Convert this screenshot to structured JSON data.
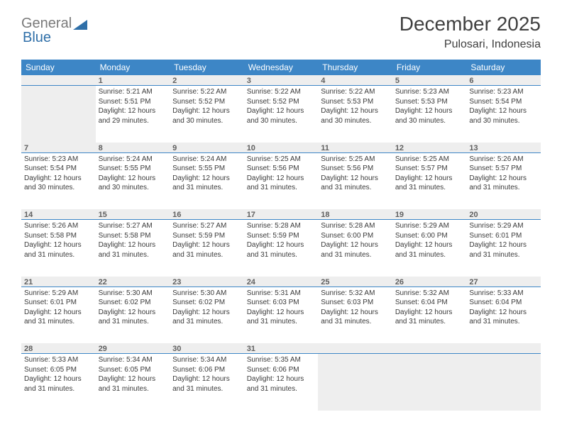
{
  "brand": {
    "gray": "General",
    "blue": "Blue"
  },
  "title": "December 2025",
  "location": "Pulosari, Indonesia",
  "colors": {
    "header_bg": "#3d86c6",
    "header_fg": "#ffffff",
    "cell_stripe": "#eeeeee",
    "border": "#3d86c6",
    "text": "#404040"
  },
  "day_headers": [
    "Sunday",
    "Monday",
    "Tuesday",
    "Wednesday",
    "Thursday",
    "Friday",
    "Saturday"
  ],
  "weeks": [
    [
      null,
      {
        "n": "1",
        "sr": "Sunrise: 5:21 AM",
        "ss": "Sunset: 5:51 PM",
        "dl": "Daylight: 12 hours and 29 minutes."
      },
      {
        "n": "2",
        "sr": "Sunrise: 5:22 AM",
        "ss": "Sunset: 5:52 PM",
        "dl": "Daylight: 12 hours and 30 minutes."
      },
      {
        "n": "3",
        "sr": "Sunrise: 5:22 AM",
        "ss": "Sunset: 5:52 PM",
        "dl": "Daylight: 12 hours and 30 minutes."
      },
      {
        "n": "4",
        "sr": "Sunrise: 5:22 AM",
        "ss": "Sunset: 5:53 PM",
        "dl": "Daylight: 12 hours and 30 minutes."
      },
      {
        "n": "5",
        "sr": "Sunrise: 5:23 AM",
        "ss": "Sunset: 5:53 PM",
        "dl": "Daylight: 12 hours and 30 minutes."
      },
      {
        "n": "6",
        "sr": "Sunrise: 5:23 AM",
        "ss": "Sunset: 5:54 PM",
        "dl": "Daylight: 12 hours and 30 minutes."
      }
    ],
    [
      {
        "n": "7",
        "sr": "Sunrise: 5:23 AM",
        "ss": "Sunset: 5:54 PM",
        "dl": "Daylight: 12 hours and 30 minutes."
      },
      {
        "n": "8",
        "sr": "Sunrise: 5:24 AM",
        "ss": "Sunset: 5:55 PM",
        "dl": "Daylight: 12 hours and 30 minutes."
      },
      {
        "n": "9",
        "sr": "Sunrise: 5:24 AM",
        "ss": "Sunset: 5:55 PM",
        "dl": "Daylight: 12 hours and 31 minutes."
      },
      {
        "n": "10",
        "sr": "Sunrise: 5:25 AM",
        "ss": "Sunset: 5:56 PM",
        "dl": "Daylight: 12 hours and 31 minutes."
      },
      {
        "n": "11",
        "sr": "Sunrise: 5:25 AM",
        "ss": "Sunset: 5:56 PM",
        "dl": "Daylight: 12 hours and 31 minutes."
      },
      {
        "n": "12",
        "sr": "Sunrise: 5:25 AM",
        "ss": "Sunset: 5:57 PM",
        "dl": "Daylight: 12 hours and 31 minutes."
      },
      {
        "n": "13",
        "sr": "Sunrise: 5:26 AM",
        "ss": "Sunset: 5:57 PM",
        "dl": "Daylight: 12 hours and 31 minutes."
      }
    ],
    [
      {
        "n": "14",
        "sr": "Sunrise: 5:26 AM",
        "ss": "Sunset: 5:58 PM",
        "dl": "Daylight: 12 hours and 31 minutes."
      },
      {
        "n": "15",
        "sr": "Sunrise: 5:27 AM",
        "ss": "Sunset: 5:58 PM",
        "dl": "Daylight: 12 hours and 31 minutes."
      },
      {
        "n": "16",
        "sr": "Sunrise: 5:27 AM",
        "ss": "Sunset: 5:59 PM",
        "dl": "Daylight: 12 hours and 31 minutes."
      },
      {
        "n": "17",
        "sr": "Sunrise: 5:28 AM",
        "ss": "Sunset: 5:59 PM",
        "dl": "Daylight: 12 hours and 31 minutes."
      },
      {
        "n": "18",
        "sr": "Sunrise: 5:28 AM",
        "ss": "Sunset: 6:00 PM",
        "dl": "Daylight: 12 hours and 31 minutes."
      },
      {
        "n": "19",
        "sr": "Sunrise: 5:29 AM",
        "ss": "Sunset: 6:00 PM",
        "dl": "Daylight: 12 hours and 31 minutes."
      },
      {
        "n": "20",
        "sr": "Sunrise: 5:29 AM",
        "ss": "Sunset: 6:01 PM",
        "dl": "Daylight: 12 hours and 31 minutes."
      }
    ],
    [
      {
        "n": "21",
        "sr": "Sunrise: 5:29 AM",
        "ss": "Sunset: 6:01 PM",
        "dl": "Daylight: 12 hours and 31 minutes."
      },
      {
        "n": "22",
        "sr": "Sunrise: 5:30 AM",
        "ss": "Sunset: 6:02 PM",
        "dl": "Daylight: 12 hours and 31 minutes."
      },
      {
        "n": "23",
        "sr": "Sunrise: 5:30 AM",
        "ss": "Sunset: 6:02 PM",
        "dl": "Daylight: 12 hours and 31 minutes."
      },
      {
        "n": "24",
        "sr": "Sunrise: 5:31 AM",
        "ss": "Sunset: 6:03 PM",
        "dl": "Daylight: 12 hours and 31 minutes."
      },
      {
        "n": "25",
        "sr": "Sunrise: 5:32 AM",
        "ss": "Sunset: 6:03 PM",
        "dl": "Daylight: 12 hours and 31 minutes."
      },
      {
        "n": "26",
        "sr": "Sunrise: 5:32 AM",
        "ss": "Sunset: 6:04 PM",
        "dl": "Daylight: 12 hours and 31 minutes."
      },
      {
        "n": "27",
        "sr": "Sunrise: 5:33 AM",
        "ss": "Sunset: 6:04 PM",
        "dl": "Daylight: 12 hours and 31 minutes."
      }
    ],
    [
      {
        "n": "28",
        "sr": "Sunrise: 5:33 AM",
        "ss": "Sunset: 6:05 PM",
        "dl": "Daylight: 12 hours and 31 minutes."
      },
      {
        "n": "29",
        "sr": "Sunrise: 5:34 AM",
        "ss": "Sunset: 6:05 PM",
        "dl": "Daylight: 12 hours and 31 minutes."
      },
      {
        "n": "30",
        "sr": "Sunrise: 5:34 AM",
        "ss": "Sunset: 6:06 PM",
        "dl": "Daylight: 12 hours and 31 minutes."
      },
      {
        "n": "31",
        "sr": "Sunrise: 5:35 AM",
        "ss": "Sunset: 6:06 PM",
        "dl": "Daylight: 12 hours and 31 minutes."
      },
      null,
      null,
      null
    ]
  ]
}
